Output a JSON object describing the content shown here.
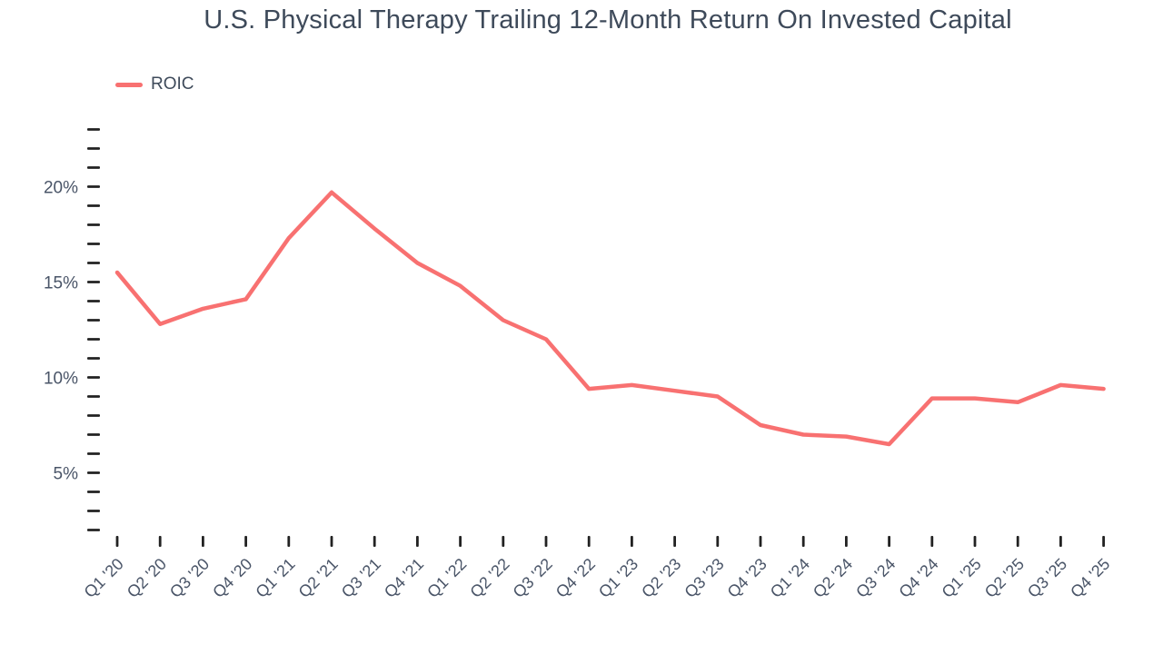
{
  "chart_data": {
    "type": "line",
    "title": "U.S. Physical Therapy Trailing 12-Month Return On Invested Capital",
    "categories": [
      "Q1 '20",
      "Q2 '20",
      "Q3 '20",
      "Q4 '20",
      "Q1 '21",
      "Q2 '21",
      "Q3 '21",
      "Q4 '21",
      "Q1 '22",
      "Q2 '22",
      "Q3 '22",
      "Q4 '22",
      "Q1 '23",
      "Q2 '23",
      "Q3 '23",
      "Q4 '23",
      "Q1 '24",
      "Q2 '24",
      "Q3 '24",
      "Q4 '24",
      "Q1 '25",
      "Q2 '25",
      "Q3 '25",
      "Q4 '25"
    ],
    "series": [
      {
        "name": "ROIC",
        "color": "#f87171",
        "values": [
          15.5,
          12.8,
          13.6,
          14.1,
          17.3,
          19.7,
          17.8,
          16.0,
          14.8,
          13.0,
          12.0,
          9.4,
          9.6,
          9.3,
          9.0,
          7.5,
          7.0,
          6.9,
          6.5,
          8.9,
          8.9,
          8.7,
          9.6,
          9.4
        ]
      }
    ],
    "xlabel": "",
    "ylabel": "",
    "yaxis": {
      "unit": "%",
      "tick_min": 2,
      "tick_max": 23,
      "minor_tick_step": 1,
      "label_step": 5,
      "labeled_ticks": [
        "5%",
        "10%",
        "15%",
        "20%"
      ]
    },
    "ylim": [
      2,
      23
    ],
    "grid": "off",
    "legend_position": "top-left",
    "colors": {
      "line": "#f87171",
      "tick_mark": "#222222",
      "axis_label": "#4a5568",
      "title_text": "#3e4a5a"
    }
  }
}
